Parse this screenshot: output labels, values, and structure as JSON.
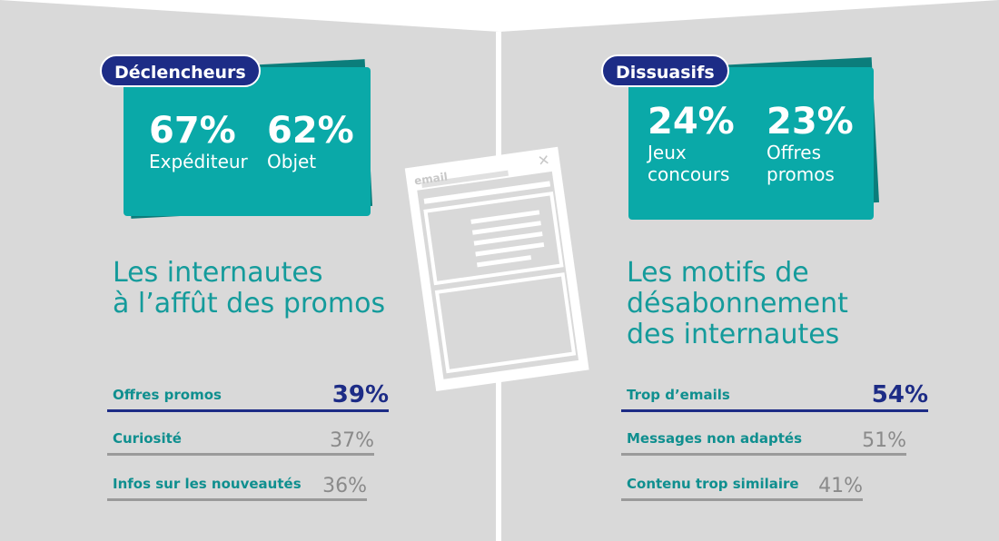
{
  "left": {
    "badge": "Déclencheurs",
    "stats": [
      {
        "value": "67%",
        "label": "Expéditeur"
      },
      {
        "value": "62%",
        "label": "Objet"
      }
    ],
    "heading": "Les internautes\nà l’affût des promos",
    "rows": [
      {
        "label": "Offres promos",
        "value": "39%"
      },
      {
        "label": "Curiosité",
        "value": "37%"
      },
      {
        "label": "Infos sur les nouveautés",
        "value": "36%"
      }
    ]
  },
  "right": {
    "badge": "Dissuasifs",
    "stats": [
      {
        "value": "24%",
        "label": "Jeux\nconcours"
      },
      {
        "value": "23%",
        "label": "Offres\npromos"
      }
    ],
    "heading": "Les motifs de\ndésabonnement\ndes internautes",
    "rows": [
      {
        "label": "Trop d’emails",
        "value": "54%"
      },
      {
        "label": "Messages non adaptés",
        "value": "51%"
      },
      {
        "label": "Contenu trop similaire",
        "value": "41%"
      }
    ]
  },
  "email_icon": {
    "label": "email",
    "icon": "email-window-icon"
  },
  "colors": {
    "teal": "#0aa9a8",
    "navy": "#1d2c86",
    "grey": "#9a9a9a"
  }
}
